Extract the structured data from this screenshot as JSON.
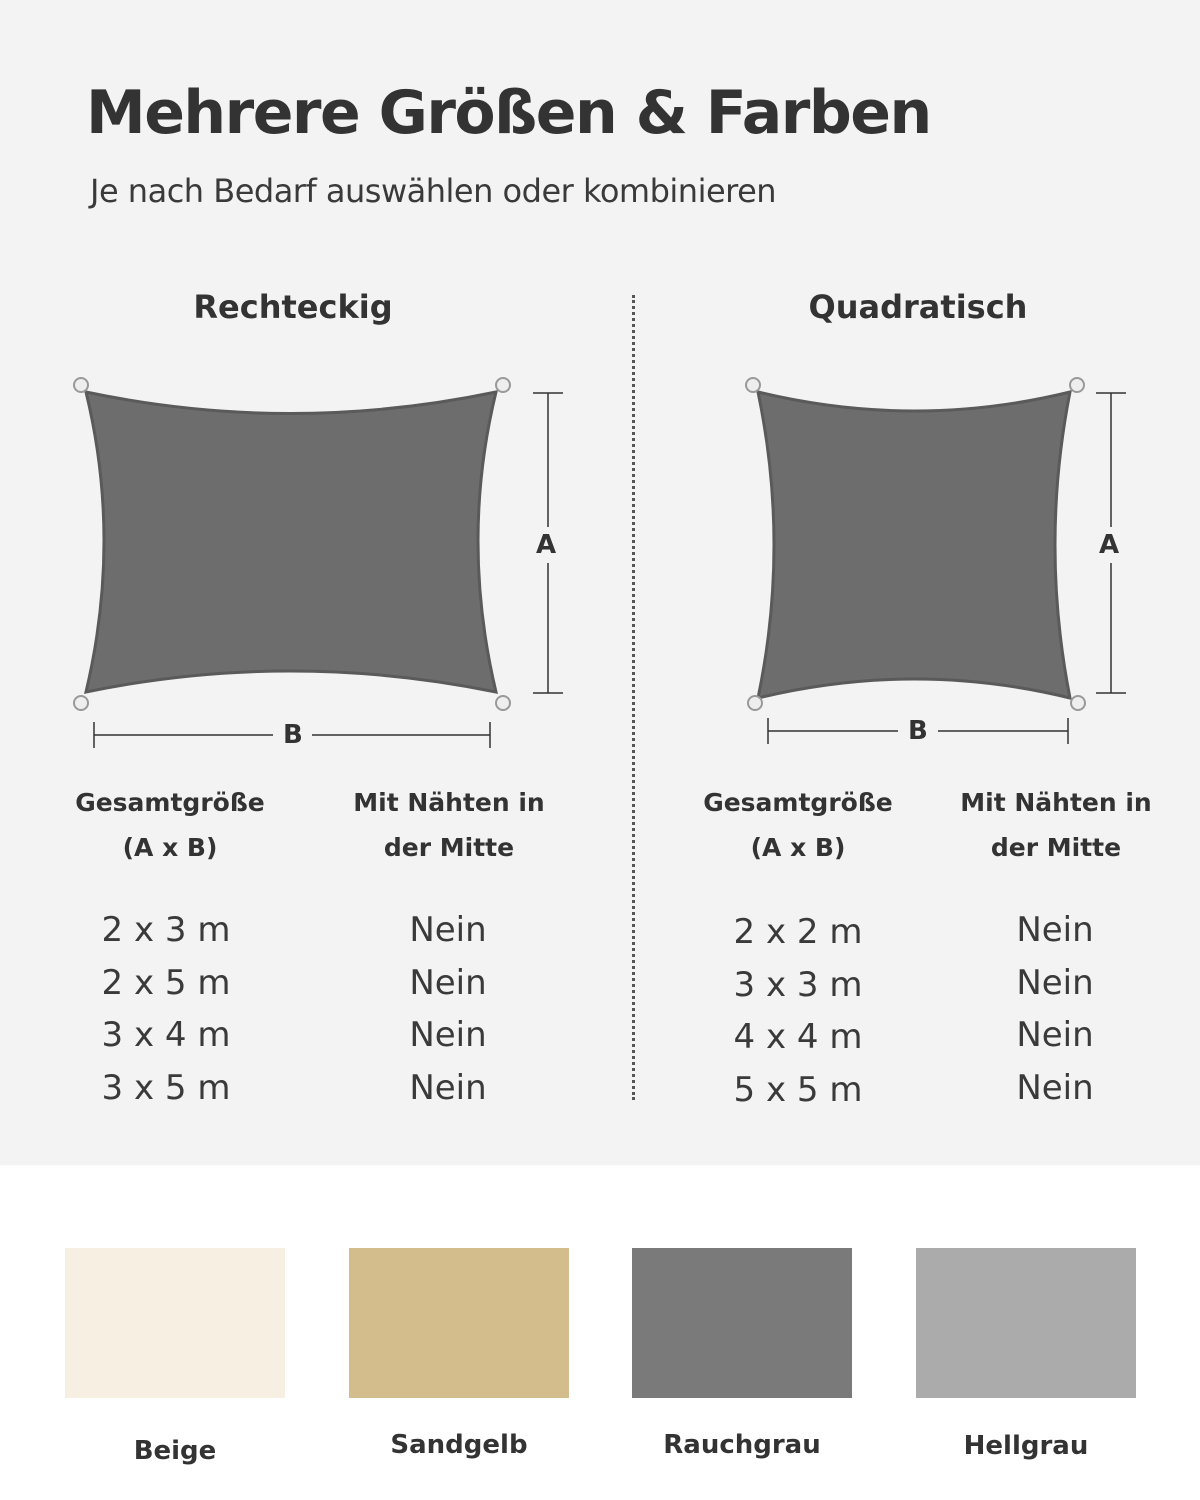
{
  "header": {
    "title": "Mehrere Größen & Farben",
    "subtitle": "Je nach Bedarf auswählen oder kombinieren"
  },
  "rectangular": {
    "title": "Rechteckig",
    "dim_a": "A",
    "dim_b": "B",
    "col1_header": [
      "Gesamtgröße",
      "(A x B)"
    ],
    "col2_header": [
      "Mit Nähten in",
      "der Mitte"
    ],
    "rows": [
      {
        "size": "2 x 3 m",
        "seams": "Nein"
      },
      {
        "size": "2 x 5 m",
        "seams": "Nein"
      },
      {
        "size": "3 x 4 m",
        "seams": "Nein"
      },
      {
        "size": "3 x 5 m",
        "seams": "Nein"
      }
    ]
  },
  "square": {
    "title": "Quadratisch",
    "dim_a": "A",
    "dim_b": "B",
    "col1_header": [
      "Gesamtgröße",
      "(A x B)"
    ],
    "col2_header": [
      "Mit Nähten in",
      "der Mitte"
    ],
    "rows": [
      {
        "size": "2 x 2 m",
        "seams": "Nein"
      },
      {
        "size": "3 x 3 m",
        "seams": "Nein"
      },
      {
        "size": "4 x 4 m",
        "seams": "Nein"
      },
      {
        "size": "5 x 5 m",
        "seams": "Nein"
      }
    ]
  },
  "colors": [
    {
      "label": "Beige",
      "hex": "#f7efe2"
    },
    {
      "label": "Sandgelb",
      "hex": "#d3bd8c"
    },
    {
      "label": "Rauchgrau",
      "hex": "#7a7a7a"
    },
    {
      "label": "Hellgrau",
      "hex": "#ababab"
    }
  ],
  "sail_color": "#6d6d6d"
}
